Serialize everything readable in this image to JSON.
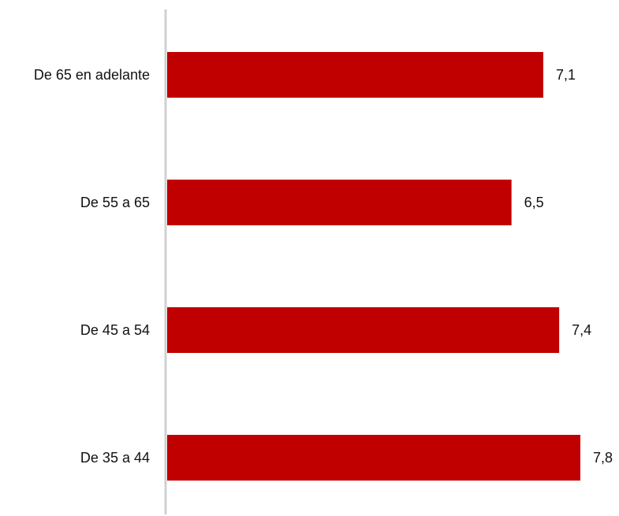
{
  "chart_data": {
    "type": "bar",
    "orientation": "horizontal",
    "categories": [
      "De 65 en adelante",
      "De 55 a 65",
      "De 45 a 54",
      "De 35 a 44"
    ],
    "values": [
      7.1,
      6.5,
      7.4,
      7.8
    ],
    "value_labels": [
      "7,1",
      "6,5",
      "7,4",
      "7,8"
    ],
    "title": "",
    "xlabel": "",
    "ylabel": "",
    "xlim": [
      0,
      7.8
    ],
    "grid": false,
    "legend": "none",
    "bar_color": "#c00000",
    "axis_color": "#d0d0d0"
  }
}
